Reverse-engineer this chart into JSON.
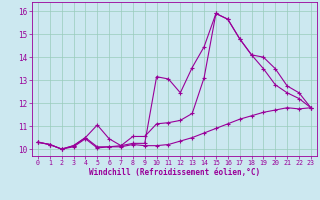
{
  "xlabel": "Windchill (Refroidissement éolien,°C)",
  "bg_color": "#cce8f0",
  "line_color": "#990099",
  "xlim": [
    -0.5,
    23.5
  ],
  "ylim": [
    9.7,
    16.4
  ],
  "xticks": [
    0,
    1,
    2,
    3,
    4,
    5,
    6,
    7,
    8,
    9,
    10,
    11,
    12,
    13,
    14,
    15,
    16,
    17,
    18,
    19,
    20,
    21,
    22,
    23
  ],
  "yticks": [
    10,
    11,
    12,
    13,
    14,
    15,
    16
  ],
  "grid_color": "#99ccbb",
  "series": [
    {
      "x": [
        0,
        1,
        2,
        3,
        4,
        5,
        6,
        7,
        8,
        9,
        10,
        11,
        12,
        13,
        14,
        15,
        16,
        17,
        18,
        19,
        20,
        21,
        22,
        23
      ],
      "y": [
        10.3,
        10.2,
        10.0,
        10.1,
        10.45,
        10.05,
        10.1,
        10.1,
        10.2,
        10.15,
        10.15,
        10.2,
        10.35,
        10.5,
        10.7,
        10.9,
        11.1,
        11.3,
        11.45,
        11.6,
        11.7,
        11.8,
        11.75,
        11.8
      ]
    },
    {
      "x": [
        0,
        1,
        2,
        3,
        4,
        5,
        6,
        7,
        8,
        9,
        10,
        11,
        12,
        13,
        14,
        15,
        16,
        17,
        18,
        19,
        20,
        21,
        22,
        23
      ],
      "y": [
        10.3,
        10.2,
        10.0,
        10.15,
        10.5,
        11.05,
        10.45,
        10.15,
        10.55,
        10.55,
        11.1,
        11.15,
        11.25,
        11.55,
        13.1,
        15.9,
        15.65,
        14.8,
        14.1,
        14.0,
        13.5,
        12.75,
        12.45,
        11.8
      ]
    },
    {
      "x": [
        0,
        1,
        2,
        3,
        4,
        5,
        6,
        7,
        8,
        9,
        10,
        11,
        12,
        13,
        14,
        15,
        16,
        17,
        18,
        19,
        20,
        21,
        22,
        23
      ],
      "y": [
        10.3,
        10.2,
        10.0,
        10.15,
        10.5,
        10.1,
        10.1,
        10.15,
        10.25,
        10.25,
        13.15,
        13.05,
        12.45,
        13.55,
        14.45,
        15.9,
        15.65,
        14.8,
        14.1,
        13.5,
        12.8,
        12.45,
        12.2,
        11.8
      ]
    }
  ]
}
